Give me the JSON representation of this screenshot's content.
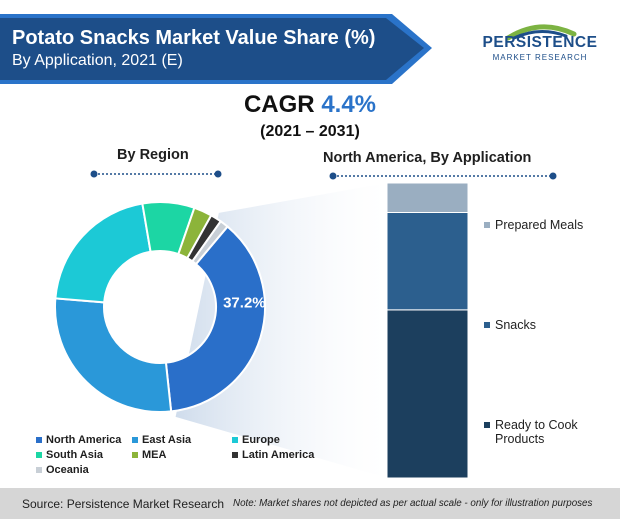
{
  "header": {
    "title": "Potato Snacks Market Value Share (%)",
    "subtitle": "By Application, 2021 (E)",
    "colors": {
      "band_dark": "#1d4e89",
      "band_light": "#2a73c9"
    }
  },
  "logo": {
    "name": "PERSISTENCE",
    "tagline": "MARKET RESEARCH",
    "icon": "globe-swoosh-logo",
    "colors": {
      "green": "#7cb342",
      "blue": "#1d4e89"
    }
  },
  "cagr": {
    "label": "CAGR",
    "value": "4.4%",
    "period": "(2021 – 2031)"
  },
  "sections": {
    "region_title": "By Region",
    "application_title": "North America, By Application"
  },
  "footer": {
    "source": "Source: Persistence Market Research",
    "note": "Note: Market shares not depicted as per actual scale - only for illustration purposes"
  },
  "chart_data": [
    {
      "type": "pie",
      "variant": "donut",
      "title": "By Region",
      "categories": [
        "North America",
        "East Asia",
        "Europe",
        "South Asia",
        "MEA",
        "Latin America",
        "Oceania"
      ],
      "values": [
        37.2,
        28.0,
        21.0,
        8.0,
        2.8,
        1.7,
        1.3
      ],
      "colors": [
        "#2a6fc9",
        "#2a98d9",
        "#1cc9d6",
        "#1cd6a4",
        "#8cb43a",
        "#333333",
        "#c8cfd6"
      ],
      "data_labels": [
        "37.2%",
        "",
        "",
        "",
        "",
        "",
        ""
      ],
      "legend_position": "bottom"
    },
    {
      "type": "bar",
      "variant": "100% stacked column",
      "title": "North America, By Application",
      "categories": [
        "Ready to Cook Products",
        "Snacks",
        "Prepared Meals"
      ],
      "values": [
        57,
        33,
        10
      ],
      "colors": [
        "#1c3f5e",
        "#2c5f8e",
        "#9aaec1"
      ],
      "ylim": [
        0,
        100
      ],
      "legend_position": "right"
    }
  ]
}
